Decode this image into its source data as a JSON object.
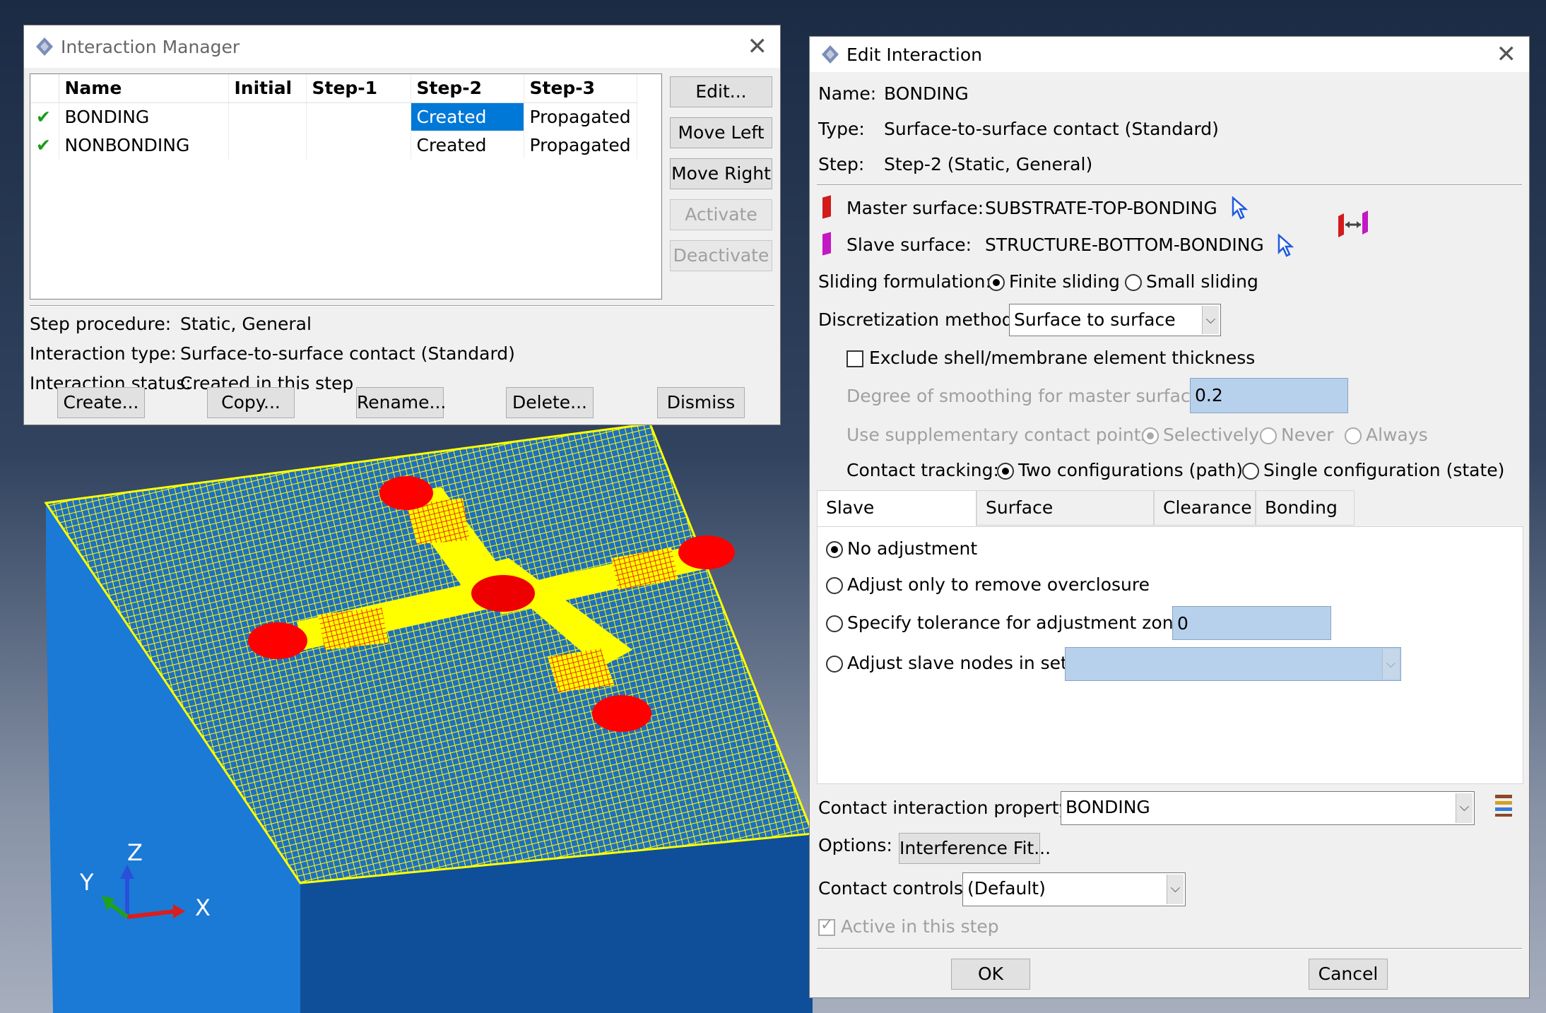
{
  "manager": {
    "title": "Interaction Manager",
    "columns": [
      "Name",
      "Initial",
      "Step-1",
      "Step-2",
      "Step-3"
    ],
    "rows": [
      {
        "name": "BONDING",
        "initial": "",
        "step1": "",
        "step2": "Created",
        "step3": "Propagated"
      },
      {
        "name": "NONBONDING",
        "initial": "",
        "step1": "",
        "step2": "Created",
        "step3": "Propagated"
      }
    ],
    "side_buttons": {
      "edit": "Edit...",
      "move_left": "Move Left",
      "move_right": "Move Right",
      "activate": "Activate",
      "deactivate": "Deactivate"
    },
    "info": {
      "step_procedure_label": "Step procedure:",
      "step_procedure_value": "Static, General",
      "interaction_type_label": "Interaction type:",
      "interaction_type_value": "Surface-to-surface contact (Standard)",
      "interaction_status_label": "Interaction status:",
      "interaction_status_value": "Created in this step"
    },
    "bottom_buttons": {
      "create": "Create...",
      "copy": "Copy...",
      "rename": "Rename...",
      "delete": "Delete...",
      "dismiss": "Dismiss"
    }
  },
  "edit": {
    "title": "Edit Interaction",
    "name_label": "Name:",
    "name_value": "BONDING",
    "type_label": "Type:",
    "type_value": "Surface-to-surface contact (Standard)",
    "step_label": "Step:",
    "step_value": "Step-2 (Static, General)",
    "master_label": "Master surface:",
    "master_value": "SUBSTRATE-TOP-BONDING",
    "slave_label": "Slave surface:",
    "slave_value": "STRUCTURE-BOTTOM-BONDING",
    "sliding_label": "Sliding formulation:",
    "sliding_finite": "Finite sliding",
    "sliding_small": "Small sliding",
    "discretization_label": "Discretization method:",
    "discretization_value": "Surface to surface",
    "exclude_shell": "Exclude shell/membrane element thickness",
    "smoothing_label": "Degree of smoothing for master surface:",
    "smoothing_value": "0.2",
    "supp_label": "Use supplementary contact points:",
    "supp_selectively": "Selectively",
    "supp_never": "Never",
    "supp_always": "Always",
    "tracking_label": "Contact tracking:",
    "tracking_two": "Two configurations (path)",
    "tracking_single": "Single configuration (state)",
    "tabs": [
      "Slave Adjustment",
      "Surface Smoothing",
      "Clearance",
      "Bonding"
    ],
    "adj_none": "No adjustment",
    "adj_overclosure": "Adjust only to remove overclosure",
    "adj_tolerance": "Specify tolerance for adjustment zone:",
    "adj_tolerance_value": "0",
    "adj_nodes": "Adjust slave nodes in set:",
    "property_label": "Contact interaction property:",
    "property_value": "BONDING",
    "options_label": "Options:",
    "options_button": "Interference Fit...",
    "controls_label": "Contact controls:",
    "controls_value": "(Default)",
    "active_label": "Active in this step",
    "ok": "OK",
    "cancel": "Cancel"
  },
  "axes": {
    "z": "Z",
    "y": "Y",
    "x": "X"
  },
  "colors": {
    "mesh_yellow": "#ffff00",
    "substrate_blue": "#1565c0",
    "contact_red": "#ff0000",
    "selection": "#0078d7"
  }
}
